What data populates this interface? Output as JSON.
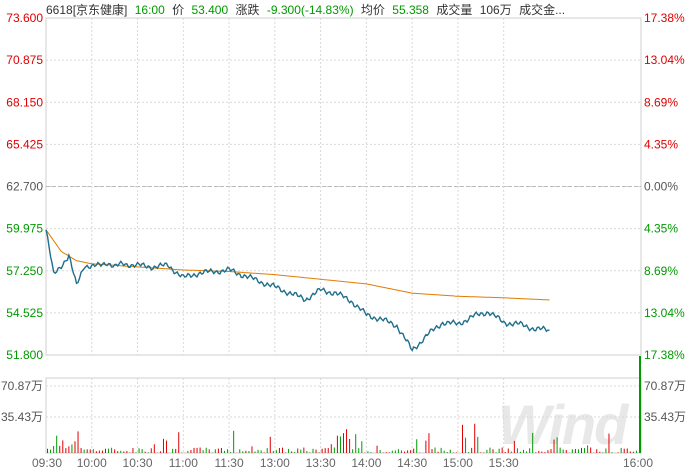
{
  "header": {
    "code_name": "6618[京东健康]",
    "time": "16:00",
    "price_label": "价",
    "price": "53.400",
    "change_label": "涨跌",
    "change": "-9.300(-14.83%)",
    "avg_label": "均价",
    "avg": "55.358",
    "volume_label": "成交量",
    "volume": "106万",
    "amount_label": "成交金..."
  },
  "watermark": "Wind",
  "colors": {
    "price_line": "#1f6e8c",
    "avg_line": "#e07b00",
    "up": "#e00000",
    "down": "#009a00",
    "grid": "#d9d9d9"
  },
  "chart_data": {
    "type": "line",
    "title": "",
    "prev_close": 62.7,
    "y_ticks_left": [
      "73.600",
      "70.875",
      "68.150",
      "65.425",
      "62.700",
      "59.975",
      "57.250",
      "54.525",
      "51.800"
    ],
    "y_ticks_right": [
      "17.38%",
      "13.04%",
      "8.69%",
      "4.35%",
      "0.00%",
      "4.35%",
      "8.69%",
      "13.04%",
      "17.38%"
    ],
    "ylim": [
      51.8,
      73.6
    ],
    "x_ticks": [
      "09:30",
      "10:00",
      "10:30",
      "11:00",
      "11:30",
      "13:00",
      "13:30",
      "14:00",
      "14:30",
      "15:00",
      "15:30",
      "16:00"
    ],
    "volume_ticks_left": [
      "70.87万",
      "35.43万"
    ],
    "volume_ticks_right": [
      "70.87万",
      "35.43万"
    ],
    "volume_max": 106,
    "series": [
      {
        "x": [
          "09:30",
          "09:35",
          "09:40",
          "09:45",
          "09:50",
          "09:55",
          "10:00",
          "10:05",
          "10:10",
          "10:15",
          "10:20",
          "10:30",
          "10:40",
          "10:50",
          "11:00",
          "11:10",
          "11:20",
          "11:30",
          "13:00",
          "13:10",
          "13:20",
          "13:30",
          "13:40",
          "13:50",
          "14:00",
          "14:10",
          "14:20",
          "14:30",
          "14:40",
          "14:50",
          "15:00",
          "15:10",
          "15:20",
          "15:30",
          "15:40",
          "15:50",
          "16:00"
        ],
        "values": [
          59.9,
          57.0,
          57.6,
          58.2,
          56.3,
          57.6,
          57.5,
          57.6,
          57.8,
          57.5,
          57.7,
          57.6,
          57.5,
          57.6,
          56.8,
          57.1,
          57.2,
          57.3,
          56.2,
          55.8,
          55.4,
          56.0,
          55.8,
          55.3,
          54.4,
          54.1,
          53.7,
          52.1,
          53.1,
          53.9,
          53.8,
          54.3,
          54.6,
          53.9,
          53.8,
          53.5,
          53.4
        ]
      },
      {
        "x": [
          "09:30",
          "09:40",
          "09:50",
          "10:00",
          "10:15",
          "10:30",
          "11:00",
          "11:30",
          "13:00",
          "13:30",
          "14:00",
          "14:30",
          "15:00",
          "15:30",
          "16:00"
        ],
        "values": [
          59.9,
          58.5,
          57.9,
          57.7,
          57.6,
          57.5,
          57.3,
          57.2,
          57.0,
          56.7,
          56.4,
          55.8,
          55.6,
          55.5,
          55.36
        ]
      }
    ]
  }
}
